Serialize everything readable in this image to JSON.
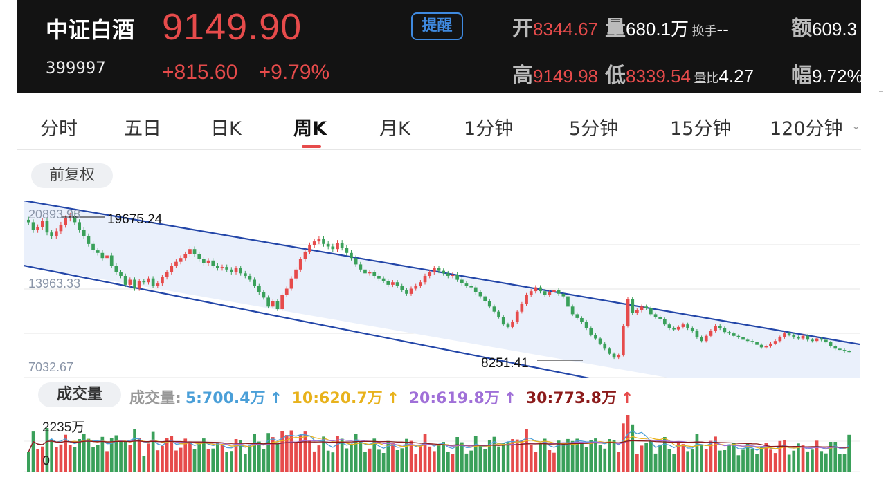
{
  "header": {
    "name": "中证白酒",
    "code": "399997",
    "price": "9149.90",
    "change": "+815.60",
    "change_pct": "+9.79%",
    "remind_label": "提醒",
    "open_label": "开",
    "open_value": "8344.67",
    "volume_label": "量",
    "volume_value": "680.1万",
    "turnover_label": "换手",
    "turnover_value": "--",
    "amount_label": "额",
    "amount_value": "609.3",
    "high_label": "高",
    "high_value": "9149.98",
    "low_label": "低",
    "low_value": "8339.54",
    "volratio_label": "量比",
    "volratio_value": "4.27",
    "amp_label": "幅",
    "amp_value": "9.72%"
  },
  "tabs": [
    "分时",
    "五日",
    "日K",
    "周K",
    "月K",
    "1分钟",
    "5分钟",
    "15分钟",
    "120分钟"
  ],
  "active_tab": "周K",
  "adjust_label": "前复权",
  "chart": {
    "price_top": "20893.98",
    "price_mid": "13963.33",
    "price_bottom": "7032.67",
    "high_annotation": "19675.24",
    "low_annotation": "8251.41"
  },
  "volume": {
    "title": "成交量",
    "legend_prefix": "成交量:",
    "ma5": "5:700.4万",
    "ma10": "10:620.7万",
    "ma20": "20:619.8万",
    "ma30": "30:773.8万",
    "max_label": "2235万",
    "zero_label": "0"
  },
  "colors": {
    "up": "#e64b4b",
    "down": "#3aa05a",
    "channel": "#2346a8",
    "ma5": "#4a9fd8",
    "ma10": "#e8b21c",
    "ma20": "#a070d8",
    "ma30": "#8b1a1a"
  },
  "chart_data": {
    "type": "candlestick",
    "channel_fill": "#eaf0fb",
    "price_series": [
      19300,
      18700,
      18900,
      19400,
      18500,
      18200,
      18600,
      19100,
      19600,
      19800,
      19300,
      18700,
      18200,
      17600,
      17100,
      16900,
      16500,
      16700,
      15900,
      15400,
      15100,
      14400,
      14800,
      14100,
      14700,
      14600,
      14900,
      14300,
      14500,
      15000,
      15400,
      15900,
      16200,
      16500,
      16800,
      17200,
      16800,
      16400,
      16100,
      16300,
      15900,
      15700,
      15800,
      15600,
      15400,
      15700,
      15300,
      15100,
      14800,
      14300,
      13800,
      13400,
      12700,
      13100,
      12500,
      13600,
      14100,
      14900,
      15600,
      16400,
      17000,
      17500,
      17800,
      18000,
      17600,
      17400,
      17200,
      17700,
      17300,
      16900,
      16500,
      16000,
      15600,
      15300,
      15400,
      15100,
      14900,
      14700,
      14400,
      14600,
      14300,
      14000,
      13700,
      14100,
      14300,
      14600,
      15100,
      15400,
      15700,
      15500,
      15300,
      15100,
      15200,
      14800,
      14500,
      14300,
      14200,
      13800,
      13500,
      13100,
      12700,
      12300,
      11900,
      11300,
      11100,
      11500,
      12300,
      12900,
      13600,
      13900,
      14200,
      13900,
      13600,
      13800,
      14000,
      13700,
      13500,
      12700,
      12100,
      11800,
      11500,
      11000,
      10500,
      10200,
      9800,
      9400,
      9000,
      8700,
      8900,
      11200,
      13300,
      12200,
      12400,
      12700,
      12600,
      12100,
      11900,
      11700,
      11300,
      11000,
      10900,
      11100,
      11300,
      11000,
      10800,
      10300,
      10000,
      10400,
      10800,
      11200,
      11000,
      10700,
      10600,
      10400,
      10300,
      10100,
      10000,
      9900,
      9700,
      9500,
      9600,
      9800,
      10000,
      10300,
      10600,
      10500,
      10300,
      10200,
      10400,
      10100,
      10000,
      10200,
      10100,
      9900,
      9600,
      9400,
      9300,
      9200,
      9149.9
    ],
    "ylim": [
      7032.67,
      20893.98
    ],
    "volume_max": 2235
  }
}
